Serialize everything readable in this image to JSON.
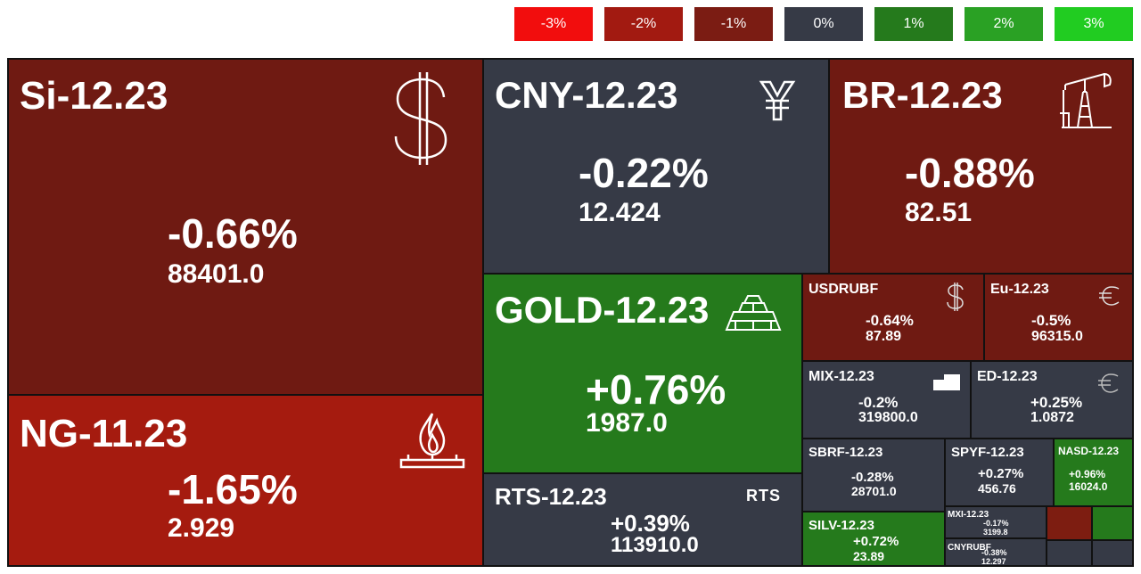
{
  "legend": [
    {
      "label": "-3%",
      "color": "#f20d0d"
    },
    {
      "label": "-2%",
      "color": "#a21a11"
    },
    {
      "label": "-1%",
      "color": "#7b1c13"
    },
    {
      "label": "0%",
      "color": "#363a46"
    },
    {
      "label": "1%",
      "color": "#257a1c"
    },
    {
      "label": "2%",
      "color": "#2aa124"
    },
    {
      "label": "3%",
      "color": "#21cc21"
    }
  ],
  "tiles": {
    "si": {
      "name": "Si-12.23",
      "pct": "-0.66%",
      "price": "88401.0",
      "icon": "dollar-icon"
    },
    "ng": {
      "name": "NG-11.23",
      "pct": "-1.65%",
      "price": "2.929",
      "icon": "gas-flame-icon"
    },
    "cny": {
      "name": "CNY-12.23",
      "pct": "-0.22%",
      "price": "12.424",
      "icon": "yen-icon"
    },
    "br": {
      "name": "BR-12.23",
      "pct": "-0.88%",
      "price": "82.51",
      "icon": "oil-pump-icon"
    },
    "gold": {
      "name": "GOLD-12.23",
      "pct": "+0.76%",
      "price": "1987.0",
      "icon": "gold-bars-icon"
    },
    "rts": {
      "name": "RTS-12.23",
      "pct": "+0.39%",
      "price": "113910.0",
      "icon_text": "RTS"
    },
    "usdrubf": {
      "name": "USDRUBF",
      "pct": "-0.64%",
      "price": "87.89",
      "icon": "dollar-icon"
    },
    "eu": {
      "name": "Eu-12.23",
      "pct": "-0.5%",
      "price": "96315.0",
      "icon": "euro-icon"
    },
    "mix": {
      "name": "MIX-12.23",
      "pct": "-0.2%",
      "price": "319800.0",
      "icon": "flag-icon"
    },
    "ed": {
      "name": "ED-12.23",
      "pct": "+0.25%",
      "price": "1.0872",
      "icon": "euro-icon"
    },
    "sbrf": {
      "name": "SBRF-12.23",
      "pct": "-0.28%",
      "price": "28701.0"
    },
    "spyf": {
      "name": "SPYF-12.23",
      "pct": "+0.27%",
      "price": "456.76"
    },
    "nasd": {
      "name": "NASD-12.23",
      "pct": "+0.96%",
      "price": "16024.0"
    },
    "silv": {
      "name": "SILV-12.23",
      "pct": "+0.72%",
      "price": "23.89"
    },
    "mxi": {
      "name": "MXI-12.23",
      "pct": "-0.17%",
      "price": "3199.8"
    },
    "cnyrubf": {
      "name": "CNYRUBF",
      "pct": "-0.38%",
      "price": "12.297"
    }
  }
}
